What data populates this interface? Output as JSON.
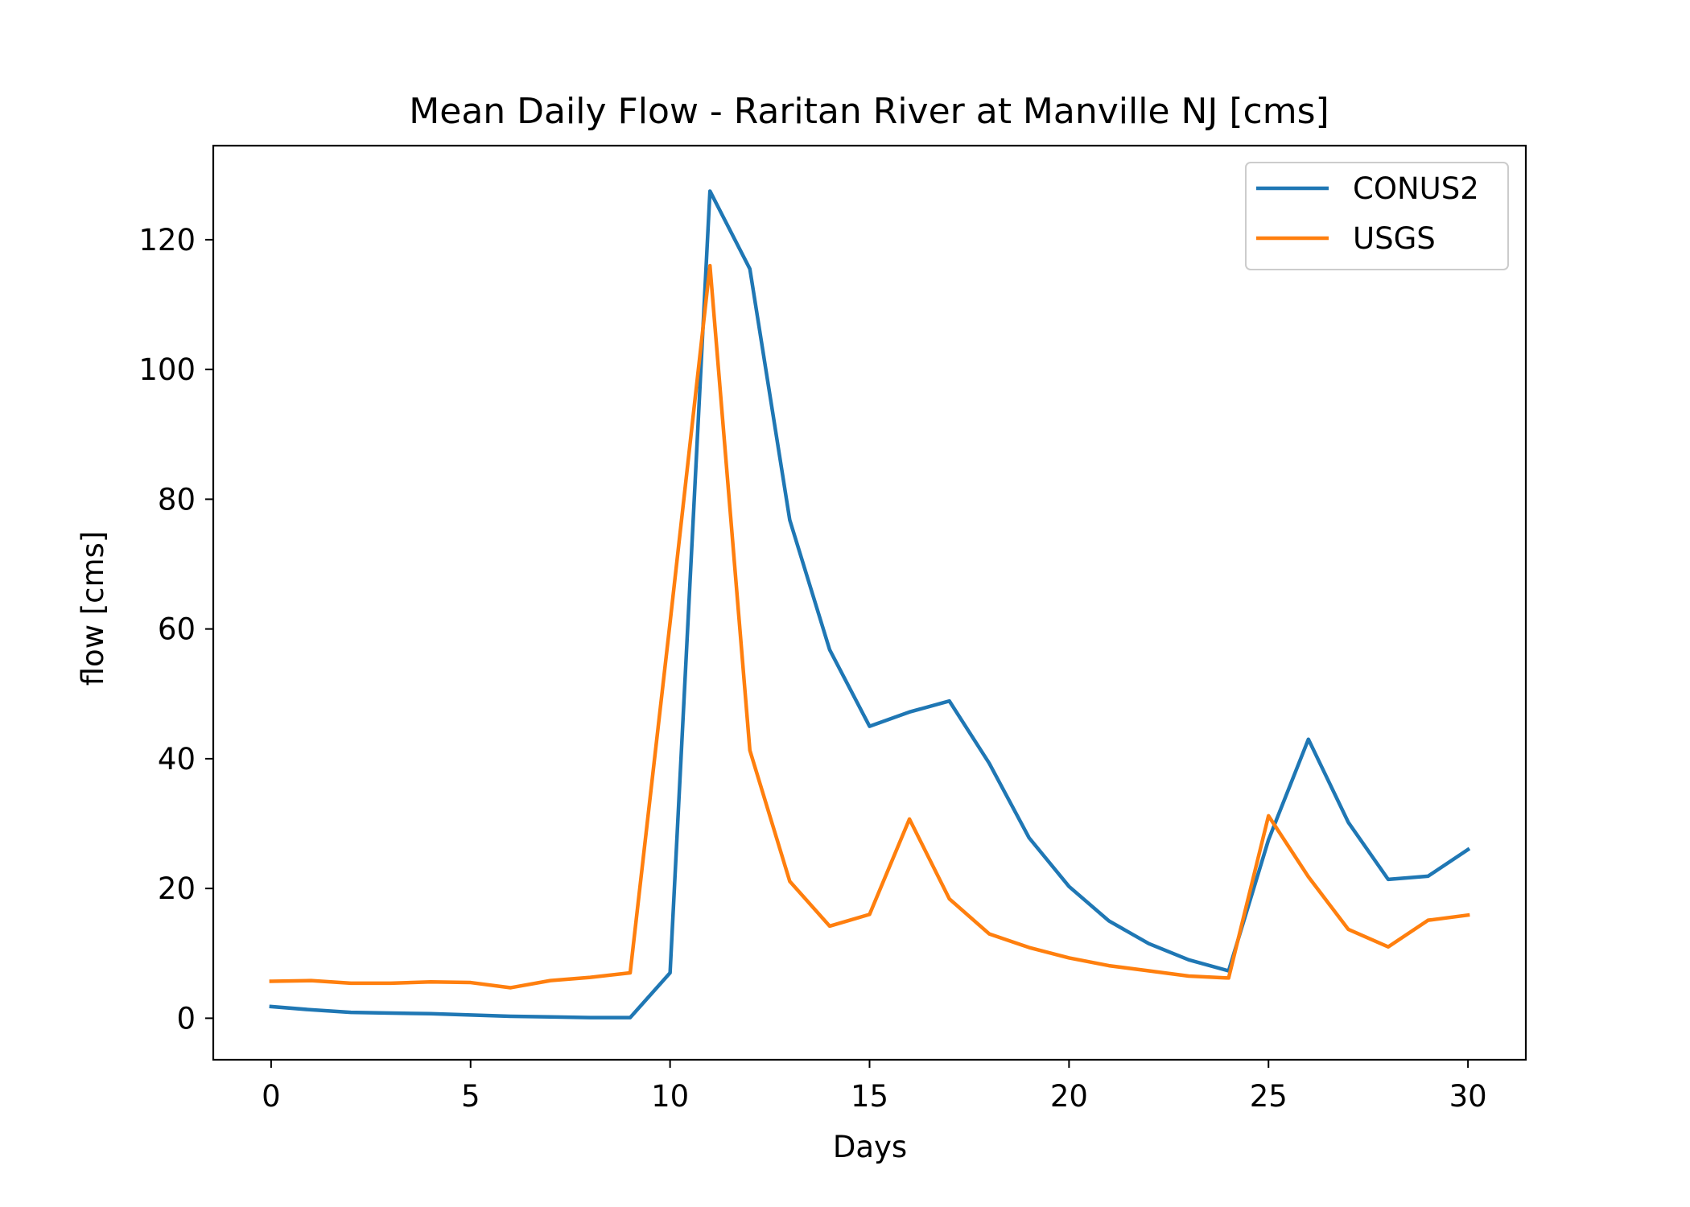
{
  "chart_data": {
    "type": "line",
    "title": "Mean Daily Flow - Raritan River at Manville NJ [cms]",
    "xlabel": "Days",
    "ylabel": "flow [cms]",
    "xlim": [
      -1.45,
      31.45
    ],
    "ylim": [
      -6.4,
      134.5
    ],
    "x_ticks": [
      0,
      5,
      10,
      15,
      20,
      25,
      30
    ],
    "y_ticks": [
      0,
      20,
      40,
      60,
      80,
      100,
      120
    ],
    "grid": false,
    "legend_position": "upper right",
    "x": [
      0,
      1,
      2,
      3,
      4,
      5,
      6,
      7,
      8,
      9,
      10,
      11,
      12,
      13,
      14,
      15,
      16,
      17,
      18,
      19,
      20,
      21,
      22,
      23,
      24,
      25,
      26,
      27,
      28,
      29,
      30
    ],
    "series": [
      {
        "name": "CONUS2",
        "color": "#1f77b4",
        "values": [
          1.8,
          1.3,
          0.9,
          0.8,
          0.7,
          0.5,
          0.3,
          0.2,
          0.1,
          0.1,
          7.0,
          127.5,
          115.5,
          76.8,
          56.8,
          45.0,
          47.2,
          48.9,
          39.3,
          27.8,
          20.3,
          15.0,
          11.5,
          9.0,
          7.3,
          27.5,
          43.0,
          30.2,
          21.4,
          21.9,
          26.0
        ]
      },
      {
        "name": "USGS",
        "color": "#ff7f0e",
        "values": [
          5.7,
          5.8,
          5.4,
          5.4,
          5.6,
          5.5,
          4.7,
          5.8,
          6.3,
          7.0,
          61.0,
          116.0,
          41.3,
          21.1,
          14.2,
          16.0,
          30.7,
          18.4,
          13.0,
          10.9,
          9.3,
          8.1,
          7.3,
          6.5,
          6.2,
          31.2,
          21.8,
          13.7,
          11.0,
          15.1,
          15.9
        ]
      }
    ]
  }
}
